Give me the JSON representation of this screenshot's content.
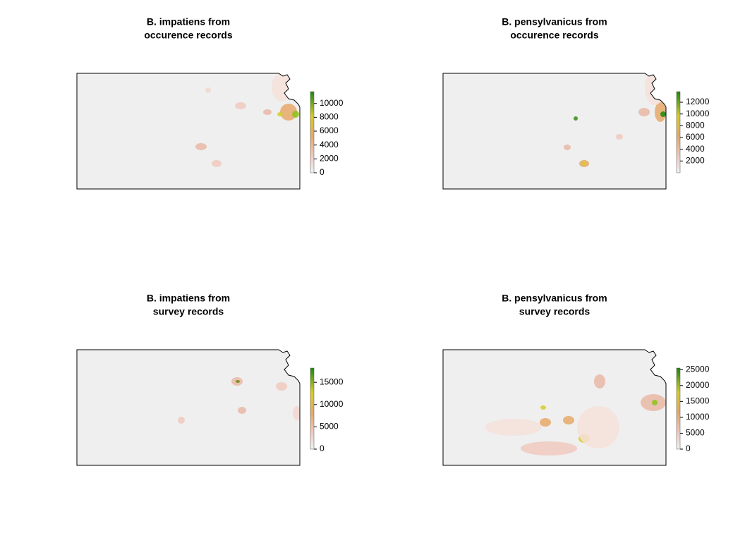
{
  "maps": [
    {
      "title": [
        "B. impatiens from",
        "occurence records"
      ],
      "legend": {
        "lim": [
          0,
          11700
        ],
        "ticks": [
          0,
          2000,
          4000,
          6000,
          8000,
          10000
        ]
      }
    },
    {
      "title": [
        "B. pensylvanicus from",
        "occurence records"
      ],
      "legend": {
        "lim": [
          0,
          13800
        ],
        "ticks": [
          2000,
          4000,
          6000,
          8000,
          10000,
          12000
        ]
      }
    },
    {
      "title": [
        "B. impatiens from",
        "survey records"
      ],
      "legend": {
        "lim": [
          0,
          18200
        ],
        "ticks": [
          0,
          5000,
          10000,
          15000
        ]
      }
    },
    {
      "title": [
        "B. pensylvanicus from",
        "survey records"
      ],
      "legend": {
        "lim": [
          0,
          25500
        ],
        "ticks": [
          0,
          5000,
          10000,
          15000,
          20000,
          25000
        ]
      }
    }
  ]
}
